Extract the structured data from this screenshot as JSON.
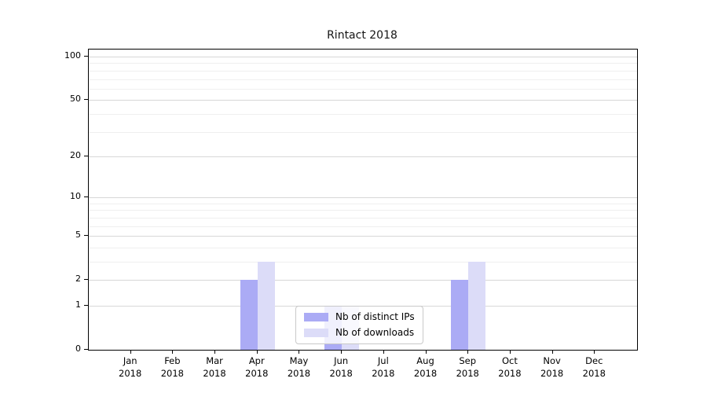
{
  "chart_data": {
    "type": "bar",
    "title": "Rintact 2018",
    "categories": [
      "Jan",
      "Feb",
      "Mar",
      "Apr",
      "May",
      "Jun",
      "Jul",
      "Aug",
      "Sep",
      "Oct",
      "Nov",
      "Dec"
    ],
    "year_label": "2018",
    "series": [
      {
        "name": "Nb of distinct IPs",
        "key": "distinct-ips",
        "color": "#ABABF5",
        "values": [
          0,
          0,
          0,
          2,
          0,
          1,
          0,
          0,
          2,
          0,
          0,
          0
        ]
      },
      {
        "name": "Nb of downloads",
        "key": "downloads",
        "color": "#DCDCF8",
        "values": [
          0,
          0,
          0,
          3,
          0,
          1,
          0,
          0,
          3,
          0,
          0,
          0
        ]
      }
    ],
    "xlabel": "",
    "ylabel": "",
    "yscale": "log1p",
    "ylim": [
      0,
      112
    ],
    "y_ticks": [
      0,
      1,
      2,
      5,
      10,
      20,
      50,
      100
    ],
    "y_minor_gridlines": [
      3,
      4,
      6,
      7,
      8,
      9,
      30,
      40,
      60,
      70,
      80,
      90
    ],
    "grid": true,
    "legend_position": "bottom-center",
    "colors": {
      "axis": "#000000",
      "major_grid": "#d7d7d7",
      "minor_grid": "#efefef",
      "background": "#ffffff"
    }
  }
}
